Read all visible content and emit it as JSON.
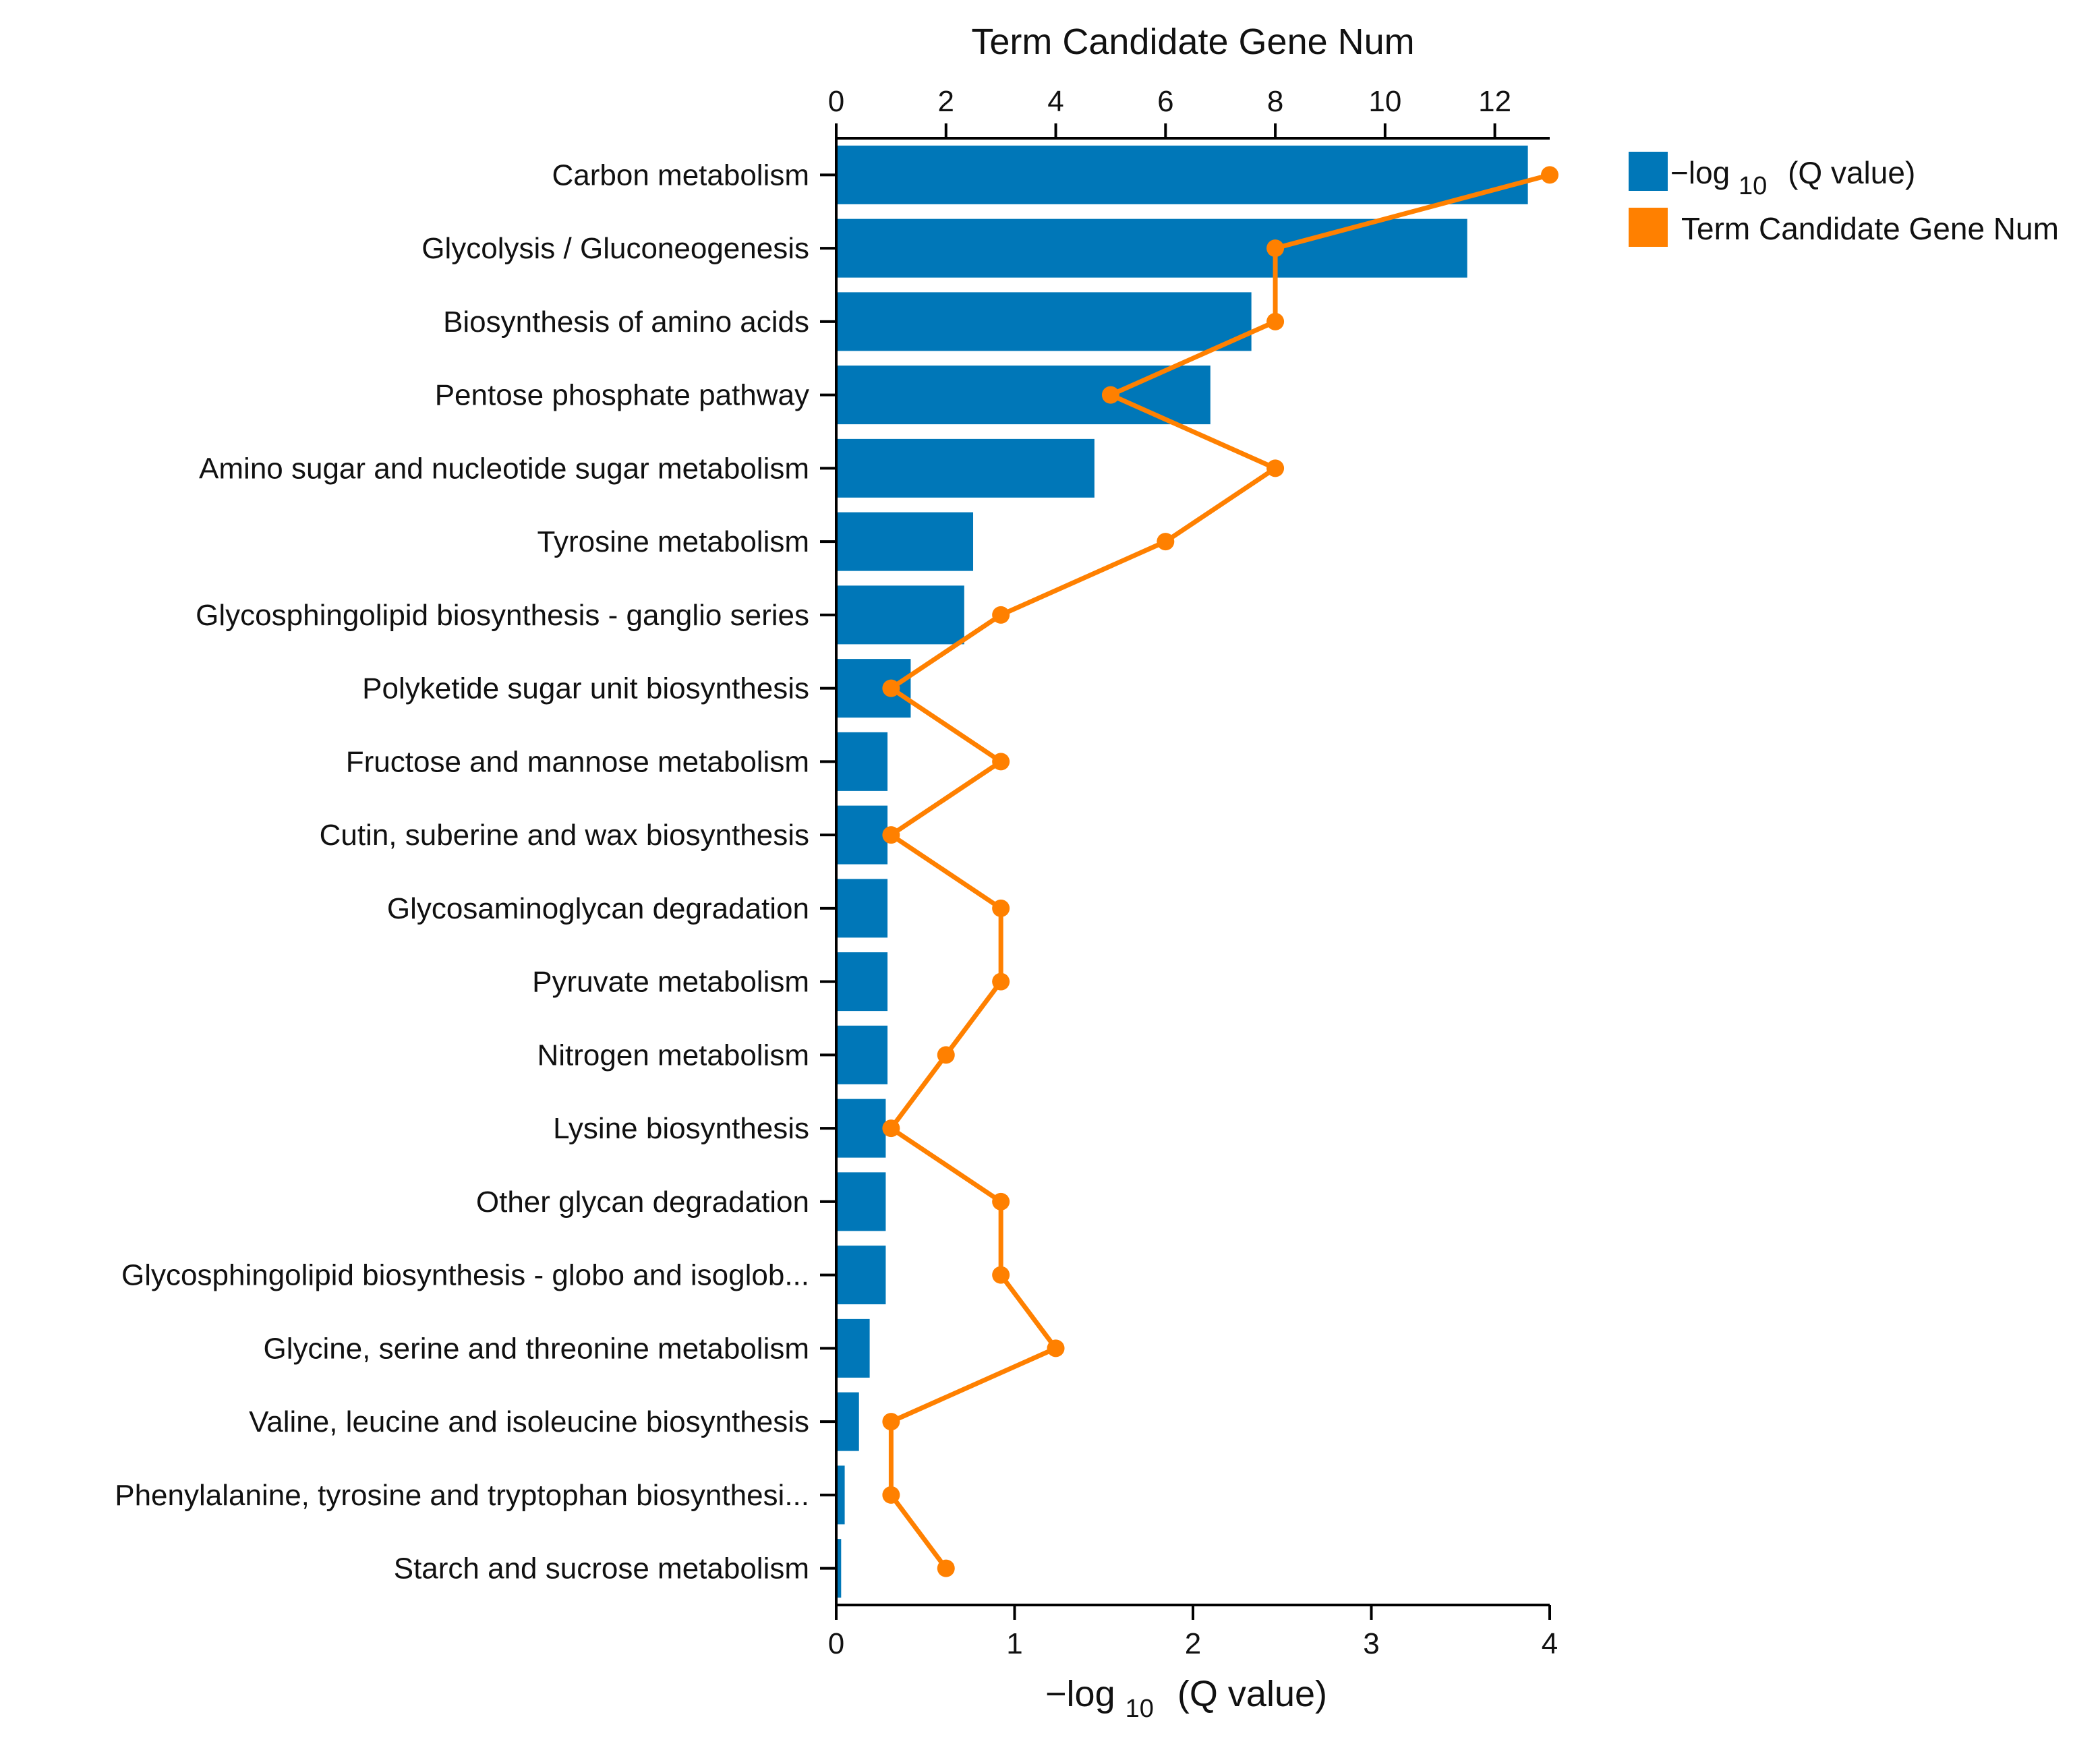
{
  "chart_data": {
    "type": "bar",
    "orientation": "horizontal",
    "categories": [
      "Carbon metabolism",
      "Glycolysis / Gluconeogenesis",
      "Biosynthesis of amino acids",
      "Pentose phosphate pathway",
      "Amino sugar and nucleotide sugar metabolism",
      "Tyrosine metabolism",
      "Glycosphingolipid biosynthesis - ganglio series",
      "Polyketide sugar unit biosynthesis",
      "Fructose and mannose metabolism",
      "Cutin, suberine and wax biosynthesis",
      "Glycosaminoglycan degradation",
      "Pyruvate metabolism",
      "Nitrogen metabolism",
      "Lysine biosynthesis",
      "Other glycan degradation",
      "Glycosphingolipid biosynthesis - globo and isoglob...",
      "Glycine, serine and threonine metabolism",
      "Valine, leucine and isoleucine biosynthesis",
      "Phenylalanine, tyrosine and tryptophan biosynthesi...",
      "Starch and sucrose metabolism"
    ],
    "series": [
      {
        "name": "−log 10 (Q value)",
        "type": "bar",
        "axis": "bottom",
        "color": "#0077b8",
        "values": [
          3.87,
          3.53,
          2.32,
          2.09,
          1.44,
          0.76,
          0.71,
          0.41,
          0.28,
          0.28,
          0.28,
          0.28,
          0.28,
          0.27,
          0.27,
          0.27,
          0.18,
          0.12,
          0.04,
          0.02
        ]
      },
      {
        "name": "Term Candidate Gene Num",
        "type": "line",
        "axis": "top",
        "color": "#ff8000",
        "values": [
          13,
          8,
          8,
          5,
          8,
          6,
          3,
          1,
          3,
          1,
          3,
          3,
          2,
          1,
          3,
          3,
          4,
          1,
          1,
          2
        ]
      }
    ],
    "x_bottom": {
      "label_main": "−log",
      "label_sub": "10",
      "label_tail": "(Q value)",
      "range": [
        0,
        4
      ],
      "ticks": [
        "0",
        "1",
        "2",
        "3",
        "4"
      ]
    },
    "x_top": {
      "label": "Term Candidate Gene Num",
      "range": [
        0,
        13
      ],
      "ticks": [
        "0",
        "2",
        "4",
        "6",
        "8",
        "10",
        "12"
      ]
    },
    "legend": {
      "position": "top-right",
      "items": [
        {
          "main": "−log",
          "sub": "10",
          "tail": "(Q value)",
          "color": "#0077b8"
        },
        {
          "main": "Term Candidate Gene Num",
          "sub": "",
          "tail": "",
          "color": "#ff8000"
        }
      ]
    },
    "grid": false
  }
}
